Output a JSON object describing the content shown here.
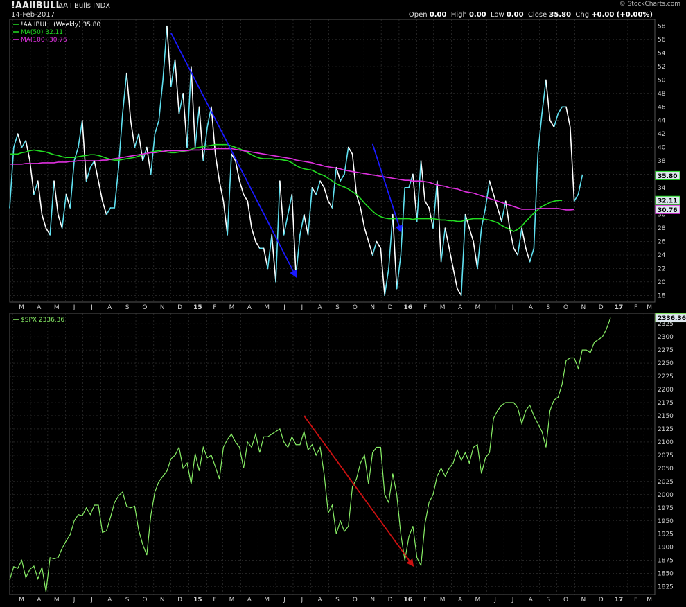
{
  "header": {
    "symbol": "!AAIIBULL",
    "name": "AAII Bulls INDX",
    "date": "14-Feb-2017",
    "brand": "© StockCharts.com",
    "ohlc": [
      {
        "label": "Open",
        "value": "0.00"
      },
      {
        "label": "High",
        "value": "0.00"
      },
      {
        "label": "Low",
        "value": "0.00"
      },
      {
        "label": "Close",
        "value": "35.80"
      },
      {
        "label": "Chg",
        "value": "+0.00 (+0.00%)"
      }
    ]
  },
  "x_axis_labels": [
    "M",
    "A",
    "M",
    "J",
    "J",
    "A",
    "S",
    "O",
    "N",
    "D",
    "15",
    "F",
    "M",
    "A",
    "M",
    "J",
    "J",
    "A",
    "S",
    "O",
    "N",
    "D",
    "16",
    "F",
    "M",
    "A",
    "M",
    "J",
    "J",
    "A",
    "S",
    "O",
    "N",
    "D",
    "17",
    "F",
    "M"
  ],
  "colors": {
    "background": "#000000",
    "grid": "#3a3a3a",
    "aaii_down": "#ffffff",
    "aaii_up": "#5fe0f0",
    "ma50": "#22dd22",
    "ma100": "#e030e0",
    "spx": "#88ee66",
    "arrow_blue": "#1a1aff",
    "arrow_red": "#cc1111"
  },
  "chart_data": [
    {
      "type": "line",
      "title": "!AAIIBULL AAII Bulls INDX",
      "ylim": [
        17,
        59
      ],
      "yticks": [
        18,
        20,
        22,
        24,
        26,
        28,
        30,
        32,
        34,
        36,
        38,
        40,
        42,
        44,
        46,
        48,
        50,
        52,
        54,
        56,
        58
      ],
      "x_range": [
        "2014-02-24",
        "2017-03-20"
      ],
      "legend_placement": "top-left",
      "legend": [
        {
          "key": "aaii",
          "text": "!AAIIBULL (Weekly) 35.80"
        },
        {
          "key": "ma50",
          "text": "MA(50) 32.11"
        },
        {
          "key": "ma100",
          "text": "MA(100) 30.76"
        }
      ],
      "last_value_tags": [
        {
          "key": "aaii",
          "text": "35.80",
          "value": 35.8
        },
        {
          "key": "ma50",
          "text": "32.11",
          "value": 32.11
        },
        {
          "key": "ma100",
          "text": "30.76",
          "value": 30.76
        }
      ],
      "series": [
        {
          "key": "aaii",
          "name": "!AAIIBULL (Weekly)",
          "start": "2014-02-24",
          "step_days": 7,
          "values": [
            31,
            40,
            42,
            40,
            41,
            38,
            33,
            35,
            30,
            28,
            27,
            35,
            30,
            28,
            33,
            31,
            38,
            40,
            44,
            35,
            37,
            38,
            35,
            32,
            30,
            31,
            31,
            37,
            45,
            51,
            44,
            40,
            42,
            38,
            40,
            36,
            42,
            44,
            50,
            58,
            49,
            53,
            45,
            48,
            40,
            52,
            40,
            46,
            38,
            43,
            46,
            39,
            35,
            32,
            27,
            39,
            38,
            35,
            33,
            32,
            28,
            26,
            25,
            25,
            22,
            27,
            20,
            35,
            27,
            30,
            33,
            21,
            27,
            30,
            27,
            34,
            33,
            35,
            34,
            32,
            31,
            37,
            35,
            36,
            40,
            39,
            33,
            31,
            28,
            26,
            24,
            26,
            25,
            18,
            22,
            30,
            19,
            24,
            34,
            34,
            36,
            29,
            38,
            32,
            31,
            28,
            35,
            23,
            28,
            25,
            22,
            19,
            18,
            30,
            28,
            26,
            22,
            28,
            31,
            35,
            33,
            31,
            29,
            32,
            28,
            25,
            24,
            28,
            25,
            23,
            25,
            39,
            45,
            50,
            44,
            43,
            45,
            46,
            46,
            43,
            32,
            33,
            35.8
          ]
        },
        {
          "key": "ma50",
          "name": "MA(50)",
          "start": "2014-02-24",
          "step_days": 7,
          "values": [
            39,
            39,
            39,
            39.2,
            39.3,
            39.5,
            39.6,
            39.5,
            39.4,
            39.3,
            39.1,
            38.9,
            38.8,
            38.6,
            38.5,
            38.5,
            38.5,
            38.6,
            38.7,
            38.8,
            38.9,
            38.9,
            38.8,
            38.6,
            38.4,
            38.2,
            38.1,
            38.1,
            38.2,
            38.3,
            38.4,
            38.5,
            38.7,
            38.9,
            39.1,
            39.3,
            39.4,
            39.5,
            39.4,
            39.3,
            39.2,
            39.2,
            39.3,
            39.4,
            39.5,
            39.7,
            39.9,
            40,
            40.1,
            40.2,
            40.3,
            40.4,
            40.4,
            40.4,
            40.4,
            40.2,
            40,
            39.8,
            39.5,
            39.2,
            38.9,
            38.6,
            38.4,
            38.3,
            38.3,
            38.3,
            38.2,
            38.2,
            38.1,
            38,
            37.7,
            37.3,
            37,
            36.8,
            36.7,
            36.6,
            36.3,
            36,
            35.8,
            35.4,
            35,
            34.6,
            34.3,
            34.1,
            33.8,
            33.4,
            33,
            32.4,
            31.7,
            31.1,
            30.5,
            30,
            29.7,
            29.5,
            29.4,
            29.4,
            29.4,
            29.4,
            29.4,
            29.4,
            29.3,
            29.4,
            29.4,
            29.4,
            29.4,
            29.4,
            29.3,
            29.2,
            29.2,
            29.1,
            29.1,
            29,
            29,
            29.2,
            29.3,
            29.4,
            29.4,
            29.4,
            29.3,
            29.2,
            29,
            28.8,
            28.4,
            28.1,
            27.8,
            27.5,
            27.8,
            28.3,
            29,
            29.6,
            30.2,
            30.7,
            31.2,
            31.5,
            31.8,
            32,
            32.1,
            32.11
          ]
        },
        {
          "key": "ma100",
          "name": "MA(100)",
          "start": "2014-02-24",
          "step_days": 7,
          "values": [
            37.5,
            37.5,
            37.5,
            37.5,
            37.6,
            37.6,
            37.6,
            37.6,
            37.7,
            37.7,
            37.7,
            37.7,
            37.8,
            37.8,
            37.8,
            37.9,
            37.9,
            38,
            38,
            38,
            38,
            38,
            38,
            38.1,
            38.1,
            38.2,
            38.3,
            38.4,
            38.5,
            38.6,
            38.7,
            38.8,
            38.9,
            39,
            39.1,
            39.2,
            39.2,
            39.3,
            39.4,
            39.5,
            39.5,
            39.5,
            39.5,
            39.5,
            39.5,
            39.6,
            39.6,
            39.6,
            39.7,
            39.7,
            39.7,
            39.8,
            39.8,
            39.8,
            39.8,
            39.8,
            39.7,
            39.6,
            39.5,
            39.4,
            39.3,
            39.2,
            39.1,
            39,
            38.9,
            38.8,
            38.7,
            38.6,
            38.5,
            38.4,
            38.3,
            38.1,
            38,
            37.9,
            37.8,
            37.7,
            37.5,
            37.4,
            37.2,
            37.1,
            37,
            36.9,
            36.8,
            36.6,
            36.5,
            36.4,
            36.3,
            36.2,
            36.1,
            36,
            35.9,
            35.8,
            35.7,
            35.6,
            35.5,
            35.4,
            35.3,
            35.2,
            35.1,
            35.1,
            35,
            35,
            35,
            34.9,
            34.8,
            34.6,
            34.4,
            34.3,
            34.2,
            34,
            33.9,
            33.8,
            33.6,
            33.4,
            33.3,
            33.2,
            33,
            32.8,
            32.6,
            32.4,
            32.2,
            32,
            31.8,
            31.6,
            31.4,
            31.2,
            31,
            30.8,
            30.8,
            30.8,
            30.8,
            30.9,
            30.9,
            30.9,
            30.9,
            30.9,
            30.9,
            30.8,
            30.7,
            30.7,
            30.76
          ]
        }
      ],
      "annotations": [
        {
          "type": "arrow",
          "color": "arrow_blue",
          "from": {
            "date": "2014-12-01",
            "value": 57
          },
          "to": {
            "date": "2015-07-06",
            "value": 20.8
          }
        },
        {
          "type": "arrow",
          "color": "arrow_blue",
          "from": {
            "date": "2015-11-16",
            "value": 40.5
          },
          "to": {
            "date": "2016-01-04",
            "value": 27.5
          }
        }
      ]
    },
    {
      "type": "line",
      "title": "$SPX",
      "ylim": [
        1810,
        2345
      ],
      "yticks": [
        1825,
        1850,
        1875,
        1900,
        1925,
        1950,
        1975,
        2000,
        2025,
        2050,
        2075,
        2100,
        2125,
        2150,
        2175,
        2200,
        2225,
        2250,
        2275,
        2300,
        2325
      ],
      "x_range": [
        "2014-02-24",
        "2017-03-20"
      ],
      "legend_placement": "top-left",
      "legend": [
        {
          "key": "spx",
          "text": "$SPX 2336.36"
        }
      ],
      "last_value_tags": [
        {
          "key": "spx",
          "text": "2336.36",
          "value": 2336.36
        }
      ],
      "series": [
        {
          "key": "spx",
          "name": "$SPX",
          "start": "2014-02-24",
          "step_days": 7,
          "values": [
            1838,
            1863,
            1860,
            1875,
            1842,
            1858,
            1864,
            1840,
            1862,
            1815,
            1880,
            1878,
            1880,
            1898,
            1912,
            1924,
            1950,
            1962,
            1960,
            1975,
            1962,
            1980,
            1980,
            1928,
            1931,
            1957,
            1985,
            1998,
            2005,
            1978,
            1975,
            1978,
            1932,
            1905,
            1885,
            1960,
            2005,
            2025,
            2035,
            2045,
            2068,
            2075,
            2090,
            2050,
            2060,
            2020,
            2078,
            2045,
            2090,
            2070,
            2075,
            2053,
            2030,
            2090,
            2105,
            2115,
            2100,
            2090,
            2050,
            2100,
            2090,
            2115,
            2080,
            2110,
            2110,
            2115,
            2120,
            2125,
            2100,
            2090,
            2110,
            2095,
            2095,
            2120,
            2085,
            2095,
            2075,
            2090,
            2038,
            1965,
            1980,
            1925,
            1950,
            1930,
            1940,
            2015,
            2030,
            2060,
            2075,
            2020,
            2080,
            2090,
            2090,
            2000,
            1985,
            2040,
            2000,
            1925,
            1875,
            1920,
            1940,
            1880,
            1865,
            1945,
            1985,
            2000,
            2035,
            2050,
            2035,
            2050,
            2060,
            2085,
            2065,
            2080,
            2060,
            2090,
            2095,
            2040,
            2070,
            2080,
            2145,
            2160,
            2170,
            2175,
            2175,
            2175,
            2165,
            2135,
            2160,
            2170,
            2150,
            2135,
            2120,
            2090,
            2160,
            2180,
            2185,
            2210,
            2255,
            2260,
            2260,
            2240,
            2275,
            2275,
            2270,
            2290,
            2295,
            2300,
            2315,
            2336.36
          ]
        }
      ],
      "annotations": [
        {
          "type": "arrow",
          "color": "arrow_red",
          "from": {
            "date": "2015-07-20",
            "value": 2150
          },
          "to": {
            "date": "2016-01-25",
            "value": 1865
          }
        }
      ]
    }
  ]
}
